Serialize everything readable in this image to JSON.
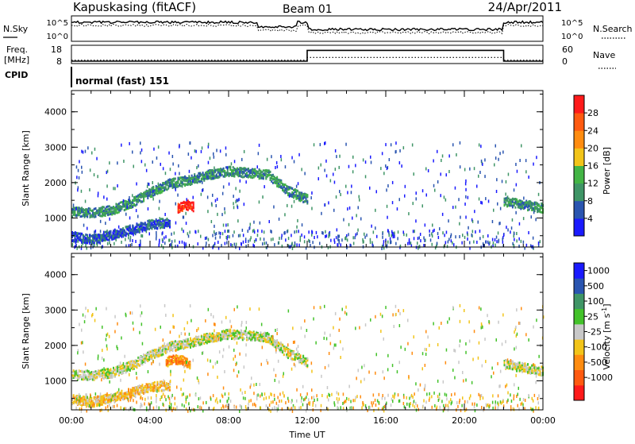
{
  "header": {
    "radar": "Kapuskasing (fitACF)",
    "beam": "Beam 01",
    "date": "24/Apr/2011"
  },
  "noise_panel": {
    "left_label": "N.Sky",
    "right_label": "N.Search",
    "left_ticks": [
      "10^5",
      "10^0"
    ],
    "right_ticks": [
      "10^5",
      "10^0"
    ]
  },
  "freq_panel": {
    "left_label_1": "Freq.",
    "left_label_2": "[MHz]",
    "right_label": "Nave",
    "left_ticks": [
      "18",
      "8"
    ],
    "right_ticks": [
      "60",
      "0"
    ],
    "freq_steps": [
      [
        0,
        9.3
      ],
      [
        12,
        15.2
      ],
      [
        22,
        9.3
      ],
      [
        24,
        9.3
      ]
    ],
    "nave_steps": [
      [
        0,
        11
      ],
      [
        12,
        20
      ],
      [
        22,
        11
      ],
      [
        24,
        11
      ]
    ]
  },
  "cpid": {
    "label": "CPID",
    "value": "normal (fast) 151"
  },
  "chart_data": [
    {
      "type": "heatmap",
      "name": "power",
      "ylabel": "Slant Range [km]",
      "xlabel": "",
      "xlim": [
        0,
        24
      ],
      "ylim": [
        180,
        4600
      ],
      "yticks": [
        "1000",
        "2000",
        "3000",
        "4000"
      ],
      "colorbar_label": "Power [dB]",
      "colorbar_ticks": [
        "4",
        "8",
        "12",
        "16",
        "20",
        "24",
        "28"
      ],
      "colors": [
        "#1a1aff",
        "#2a55b0",
        "#3f9566",
        "#43b545",
        "#f2c419",
        "#ff8c10",
        "#ff5a10",
        "#ff1a1a"
      ],
      "bands": [
        {
          "t": [
            0,
            1,
            2,
            3,
            4,
            5,
            6,
            7,
            8,
            9,
            10,
            11,
            12
          ],
          "r": [
            1200,
            1180,
            1250,
            1450,
            1750,
            2000,
            2100,
            2250,
            2350,
            2300,
            2250,
            1800,
            1550
          ],
          "level": 2
        },
        {
          "t": [
            0,
            1,
            2,
            3,
            4,
            5
          ],
          "r": [
            500,
            420,
            550,
            700,
            850,
            900
          ],
          "level": 1
        },
        {
          "t": [
            5.4,
            5.8,
            6.2
          ],
          "r": [
            1300,
            1400,
            1350
          ],
          "level": 7
        },
        {
          "t": [
            22,
            22.5,
            23,
            23.5,
            24
          ],
          "r": [
            1500,
            1450,
            1400,
            1350,
            1300
          ],
          "level": 2
        }
      ]
    },
    {
      "type": "heatmap",
      "name": "velocity",
      "ylabel": "Slant Range [km]",
      "xlabel": "Time UT",
      "xlim": [
        0,
        24
      ],
      "ylim": [
        180,
        4600
      ],
      "xticks": [
        "00:00",
        "04:00",
        "08:00",
        "12:00",
        "16:00",
        "20:00",
        "00:00"
      ],
      "yticks": [
        "1000",
        "2000",
        "3000",
        "4000"
      ],
      "colorbar_label": "Velocity [m s",
      "colorbar_label_sup": "-1",
      "colorbar_label_end": "]",
      "colorbar_ticks": [
        "1000",
        "500",
        "100",
        "25",
        "-25",
        "-100",
        "-500",
        "-1000"
      ],
      "colors": [
        "#1a1aff",
        "#2a55b0",
        "#3f9566",
        "#43c22a",
        "#c8c8c8",
        "#f2c419",
        "#ff8c10",
        "#ff5a10",
        "#ff1a1a"
      ],
      "bands": [
        {
          "t": [
            0,
            1,
            2,
            3,
            4,
            5,
            6,
            7,
            8,
            9,
            10,
            11,
            12
          ],
          "r": [
            1200,
            1180,
            1250,
            1450,
            1750,
            2000,
            2100,
            2250,
            2350,
            2300,
            2250,
            1800,
            1550
          ],
          "level": 4
        },
        {
          "t": [
            0,
            1,
            2,
            3,
            4,
            5
          ],
          "r": [
            500,
            420,
            550,
            700,
            850,
            900
          ],
          "level": 5
        },
        {
          "t": [
            4.8,
            5.2,
            5.6,
            6.0
          ],
          "r": [
            1550,
            1650,
            1600,
            1500
          ],
          "level": 6
        },
        {
          "t": [
            22,
            22.5,
            23,
            23.5,
            24
          ],
          "r": [
            1500,
            1450,
            1400,
            1350,
            1300
          ],
          "level": 4
        }
      ]
    }
  ]
}
